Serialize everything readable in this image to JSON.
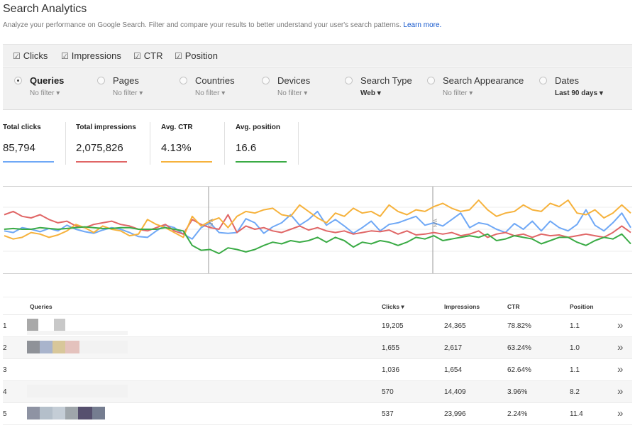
{
  "header": {
    "title": "Search Analytics",
    "subtitle": "Analyze your performance on Google Search. Filter and compare your results to better understand your user's search patterns.",
    "learn_more": "Learn more."
  },
  "metrics": [
    {
      "label": "Clicks",
      "checked": true
    },
    {
      "label": "Impressions",
      "checked": true
    },
    {
      "label": "CTR",
      "checked": true
    },
    {
      "label": "Position",
      "checked": true
    }
  ],
  "dimensions": [
    {
      "label": "Queries",
      "filter": "No filter",
      "selected": true
    },
    {
      "label": "Pages",
      "filter": "No filter",
      "selected": false
    },
    {
      "label": "Countries",
      "filter": "No filter",
      "selected": false
    },
    {
      "label": "Devices",
      "filter": "No filter",
      "selected": false
    },
    {
      "label": "Search Type",
      "filter": "Web",
      "selected": false
    },
    {
      "label": "Search Appearance",
      "filter": "No filter",
      "selected": false
    },
    {
      "label": "Dates",
      "filter": "Last 90 days",
      "selected": false
    }
  ],
  "kpis": [
    {
      "label": "Total clicks",
      "value": "85,794",
      "color": "#6fa8f6"
    },
    {
      "label": "Total impressions",
      "value": "2,075,826",
      "color": "#e06666"
    },
    {
      "label": "Avg. CTR",
      "value": "4.13%",
      "color": "#f6b23c"
    },
    {
      "label": "Avg. position",
      "value": "16.6",
      "color": "#3aab45"
    }
  ],
  "chart_data": {
    "type": "line",
    "annotations": [
      "N/A",
      "N/A"
    ],
    "series": [
      {
        "color": "#6fa8f6",
        "values": [
          48,
          46,
          52,
          50,
          47,
          51,
          48,
          55,
          50,
          47,
          45,
          49,
          52,
          50,
          46,
          41,
          40,
          48,
          55,
          52,
          44,
          38,
          52,
          58,
          46,
          45,
          46,
          63,
          58,
          45,
          53,
          58,
          68,
          55,
          62,
          72,
          55,
          62,
          54,
          45,
          52,
          60,
          48,
          56,
          58,
          62,
          66,
          55,
          58,
          54,
          62,
          70,
          52,
          58,
          56,
          50,
          46,
          57,
          50,
          60,
          48,
          60,
          52,
          48,
          56,
          74,
          55,
          48,
          58,
          70,
          52
        ]
      },
      {
        "color": "#e06666",
        "values": [
          68,
          72,
          66,
          64,
          68,
          62,
          58,
          60,
          54,
          52,
          56,
          58,
          60,
          56,
          54,
          50,
          48,
          52,
          56,
          48,
          44,
          62,
          56,
          52,
          50,
          68,
          46,
          54,
          50,
          52,
          48,
          46,
          50,
          54,
          49,
          52,
          48,
          46,
          48,
          44,
          46,
          48,
          47,
          49,
          44,
          48,
          43,
          44,
          46,
          44,
          46,
          42,
          44,
          48,
          40,
          44,
          46,
          42,
          44,
          40,
          44,
          42,
          43,
          40,
          42,
          44,
          42,
          40,
          46,
          54,
          46
        ]
      },
      {
        "color": "#f6b23c",
        "values": [
          42,
          38,
          40,
          46,
          44,
          40,
          43,
          48,
          56,
          52,
          46,
          54,
          50,
          48,
          42,
          44,
          62,
          56,
          52,
          46,
          40,
          66,
          54,
          60,
          64,
          52,
          66,
          72,
          70,
          74,
          76,
          68,
          66,
          80,
          72,
          64,
          58,
          70,
          66,
          76,
          70,
          72,
          66,
          80,
          72,
          68,
          74,
          72,
          78,
          82,
          76,
          72,
          74,
          86,
          74,
          66,
          70,
          72,
          80,
          74,
          72,
          82,
          78,
          86,
          70,
          68,
          74,
          64,
          70,
          80,
          70
        ]
      },
      {
        "color": "#3aab45",
        "values": [
          50,
          51,
          50,
          50,
          52,
          51,
          50,
          51,
          52,
          53,
          52,
          51,
          51,
          52,
          52,
          50,
          50,
          50,
          52,
          50,
          48,
          30,
          24,
          25,
          20,
          27,
          25,
          22,
          25,
          30,
          34,
          32,
          36,
          34,
          36,
          40,
          34,
          40,
          36,
          28,
          34,
          32,
          36,
          34,
          30,
          34,
          40,
          38,
          42,
          36,
          38,
          40,
          42,
          40,
          44,
          36,
          38,
          42,
          40,
          38,
          32,
          36,
          40,
          40,
          34,
          30,
          36,
          40,
          38,
          44,
          32
        ]
      }
    ]
  },
  "table": {
    "headers": {
      "queries": "Queries",
      "clicks": "Clicks ▾",
      "impressions": "Impressions",
      "ctr": "CTR",
      "position": "Position"
    },
    "rows": [
      {
        "rank": "1",
        "clicks": "19,205",
        "impressions": "24,365",
        "ctr": "78.82%",
        "position": "1.1"
      },
      {
        "rank": "2",
        "clicks": "1,655",
        "impressions": "2,617",
        "ctr": "63.24%",
        "position": "1.0"
      },
      {
        "rank": "3",
        "clicks": "1,036",
        "impressions": "1,654",
        "ctr": "62.64%",
        "position": "1.1"
      },
      {
        "rank": "4",
        "clicks": "570",
        "impressions": "14,409",
        "ctr": "3.96%",
        "position": "8.2"
      },
      {
        "rank": "5",
        "clicks": "537",
        "impressions": "23,996",
        "ctr": "2.24%",
        "position": "11.4"
      }
    ],
    "row_action_icon": "double-chevron-right-icon"
  }
}
